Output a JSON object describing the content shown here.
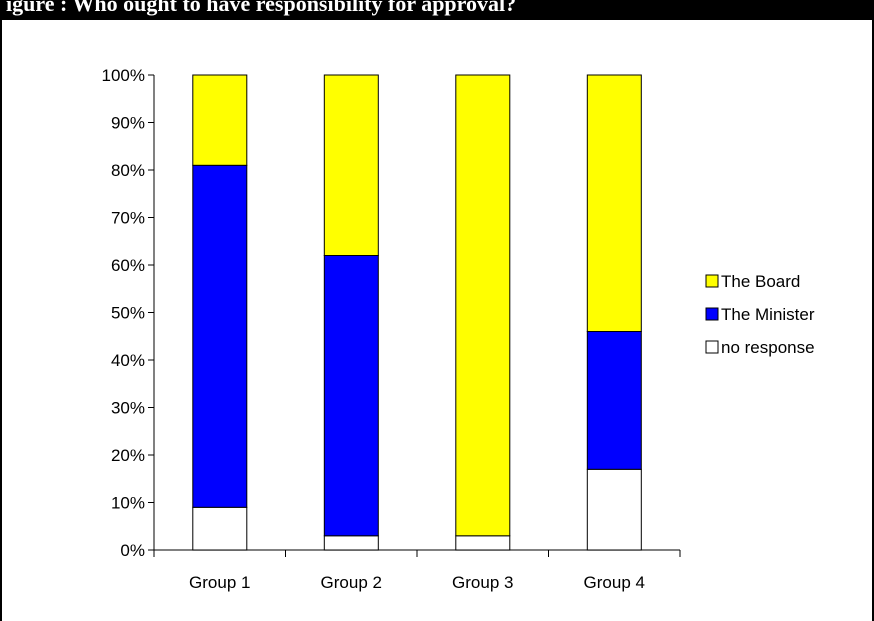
{
  "figure": {
    "title": "igure   : Who ought to have responsibility for approval?"
  },
  "chart_data": {
    "type": "bar",
    "stacked": true,
    "categories": [
      "Group 1",
      "Group 2",
      "Group 3",
      "Group 4"
    ],
    "series": [
      {
        "name": "no response",
        "values": [
          9,
          3,
          3,
          17
        ],
        "color": "#FFFFFF"
      },
      {
        "name": "The Minister",
        "values": [
          72,
          59,
          0,
          29
        ],
        "color": "#0000FF"
      },
      {
        "name": "The Board",
        "values": [
          19,
          38,
          97,
          54
        ],
        "color": "#FFFF00"
      }
    ],
    "legend_order": [
      "The Board",
      "The Minister",
      "no response"
    ],
    "legend_position": "right",
    "yticks": [
      "0%",
      "10%",
      "20%",
      "30%",
      "40%",
      "50%",
      "60%",
      "70%",
      "80%",
      "90%",
      "100%"
    ],
    "ylim": [
      0,
      100
    ],
    "grid": false,
    "title": "",
    "xlabel": "",
    "ylabel": ""
  }
}
